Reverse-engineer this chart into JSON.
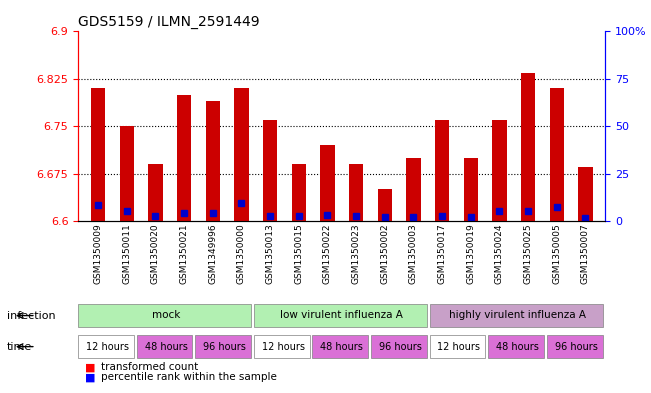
{
  "title": "GDS5159 / ILMN_2591449",
  "samples": [
    "GSM1350009",
    "GSM1350011",
    "GSM1350020",
    "GSM1350021",
    "GSM1349996",
    "GSM1350000",
    "GSM1350013",
    "GSM1350015",
    "GSM1350022",
    "GSM1350023",
    "GSM1350002",
    "GSM1350003",
    "GSM1350017",
    "GSM1350019",
    "GSM1350024",
    "GSM1350025",
    "GSM1350005",
    "GSM1350007"
  ],
  "bar_tops": [
    6.81,
    6.75,
    6.69,
    6.8,
    6.79,
    6.81,
    6.76,
    6.69,
    6.72,
    6.69,
    6.65,
    6.7,
    6.76,
    6.7,
    6.76,
    6.835,
    6.81,
    6.685
  ],
  "blue_dots": [
    6.625,
    6.615,
    6.608,
    6.613,
    6.612,
    6.628,
    6.608,
    6.608,
    6.61,
    6.608,
    6.606,
    6.607,
    6.608,
    6.607,
    6.615,
    6.615,
    6.622,
    6.605
  ],
  "blue_pct": [
    15,
    10,
    5,
    10,
    8,
    18,
    7,
    7,
    8,
    7,
    3,
    5,
    7,
    5,
    12,
    12,
    16,
    3
  ],
  "bar_base": 6.6,
  "ylim_left": [
    6.6,
    6.9
  ],
  "ylim_right": [
    0,
    100
  ],
  "yticks_left": [
    6.6,
    6.675,
    6.75,
    6.825,
    6.9
  ],
  "yticks_right": [
    0,
    25,
    50,
    75,
    100
  ],
  "bar_color": "#cc0000",
  "dot_color": "#0000cc",
  "bg_color": "#ffffff",
  "plot_bg": "#ffffff",
  "grid_color": "#000000",
  "infection_groups": [
    {
      "label": "mock",
      "start": 0,
      "end": 6,
      "color": "#90ee90"
    },
    {
      "label": "low virulent influenza A",
      "start": 6,
      "end": 12,
      "color": "#90ee90"
    },
    {
      "label": "highly virulent influenza A",
      "start": 12,
      "end": 18,
      "color": "#90ee90"
    }
  ],
  "time_groups": [
    {
      "label": "12 hours",
      "start": 0,
      "end": 2,
      "color": "#ffffff"
    },
    {
      "label": "48 hours",
      "start": 2,
      "end": 4,
      "color": "#da70d6"
    },
    {
      "label": "96 hours",
      "start": 4,
      "end": 6,
      "color": "#da70d6"
    },
    {
      "label": "12 hours",
      "start": 6,
      "end": 8,
      "color": "#ffffff"
    },
    {
      "label": "48 hours",
      "start": 8,
      "end": 10,
      "color": "#da70d6"
    },
    {
      "label": "96 hours",
      "start": 10,
      "end": 12,
      "color": "#da70d6"
    },
    {
      "label": "12 hours",
      "start": 12,
      "end": 14,
      "color": "#ffffff"
    },
    {
      "label": "48 hours",
      "start": 14,
      "end": 16,
      "color": "#da70d6"
    },
    {
      "label": "96 hours",
      "start": 16,
      "end": 18,
      "color": "#da70d6"
    }
  ],
  "legend_items": [
    {
      "label": "transformed count",
      "color": "#cc0000",
      "marker": "s"
    },
    {
      "label": "percentile rank within the sample",
      "color": "#0000cc",
      "marker": "s"
    }
  ]
}
